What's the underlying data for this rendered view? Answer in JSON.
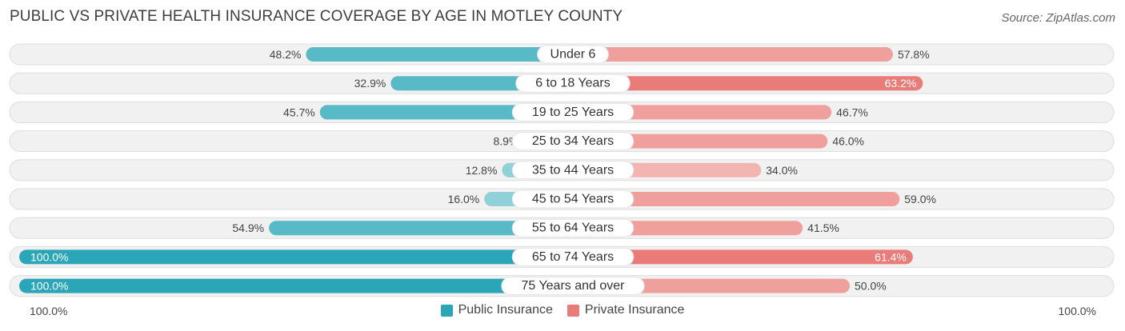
{
  "title": "PUBLIC VS PRIVATE HEALTH INSURANCE COVERAGE BY AGE IN MOTLEY COUNTY",
  "source": "Source: ZipAtlas.com",
  "axis": {
    "left_label": "100.0%",
    "right_label": "100.0%"
  },
  "colors": {
    "public_strong": "#2aa6b8",
    "public_mid": "#58b9c7",
    "public_light": "#8fd0d9",
    "private_strong": "#e97b78",
    "private_mid": "#ef9f9c",
    "private_light": "#f3b5b2",
    "track": "#f1f1f1",
    "track_border": "#dddddd"
  },
  "chart_data": {
    "type": "bar",
    "orientation": "horizontal-diverging",
    "categories": [
      "Under 6",
      "6 to 18 Years",
      "19 to 25 Years",
      "25 to 34 Years",
      "35 to 44 Years",
      "45 to 54 Years",
      "55 to 64 Years",
      "65 to 74 Years",
      "75 Years and over"
    ],
    "series": [
      {
        "name": "Public Insurance",
        "values": [
          48.2,
          32.9,
          45.7,
          8.9,
          12.8,
          16.0,
          54.9,
          100.0,
          100.0
        ],
        "labels": [
          "48.2%",
          "32.9%",
          "45.7%",
          "8.9%",
          "12.8%",
          "16.0%",
          "54.9%",
          "100.0%",
          "100.0%"
        ]
      },
      {
        "name": "Private Insurance",
        "values": [
          57.8,
          63.2,
          46.7,
          46.0,
          34.0,
          59.0,
          41.5,
          61.4,
          50.0
        ],
        "labels": [
          "57.8%",
          "63.2%",
          "46.7%",
          "46.0%",
          "34.0%",
          "59.0%",
          "41.5%",
          "61.4%",
          "50.0%"
        ]
      }
    ],
    "xlim": [
      -100,
      100
    ],
    "legend_position": "bottom-center"
  }
}
